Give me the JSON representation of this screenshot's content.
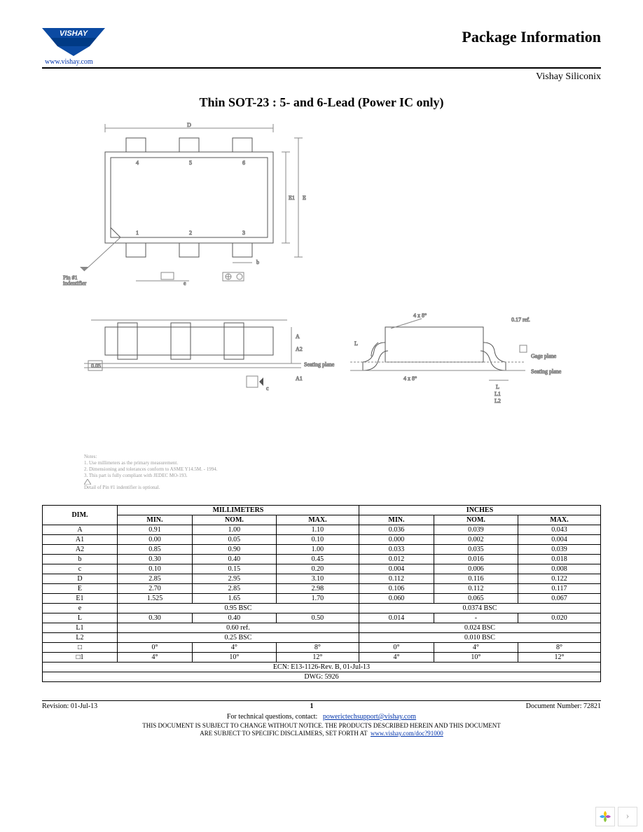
{
  "header": {
    "brand": "VISHAY",
    "url": "www.vishay.com",
    "title": "Package Information",
    "sub_brand": "Vishay Siliconix"
  },
  "doc_title": "Thin SOT-23 : 5- and 6-Lead (Power IC only)",
  "logo_colors": {
    "top": "#0b4aa2",
    "bottom": "#003a85"
  },
  "diagram": {
    "pin1_label": "Pin #1\nindentifier",
    "pins_top": [
      "4",
      "5",
      "6"
    ],
    "pins_bottom": [
      "1",
      "2",
      "3"
    ],
    "dims_top": {
      "D_label": "D",
      "E1_label": "E1",
      "E_label": "E",
      "b_label": "b"
    },
    "dims_mid": {
      "e_label": "e",
      "c_label": "c",
      "A_label": "A",
      "A2_label": "A2",
      "A1_label": "A1",
      "seating": "Seating plane",
      "scale": "0.05"
    },
    "dims_side": {
      "L_label": "L",
      "L1_label": "L1",
      "L2_label": "L2",
      "gage": "Gage plane",
      "seating": "Seating plane",
      "angles": "4 x 8°",
      "rad": "0.17 ref."
    }
  },
  "notes": {
    "heading": "Notes:",
    "n1": "1. Use millimeters as the primary measurement.",
    "n2": "2. Dimensioning and tolerances conform to ASME Y14.5M. - 1994.",
    "n3": "3. This part is fully compliant with JEDEC MO-193.",
    "n4": "Detail of Pin #1 indentifier is optional."
  },
  "table": {
    "group_headers": [
      "MILLIMETERS",
      "INCHES"
    ],
    "col_headers": [
      "DIM.",
      "MIN.",
      "NOM.",
      "MAX.",
      "MIN.",
      "NOM.",
      "MAX."
    ],
    "rows": [
      {
        "dim": "A",
        "mm": [
          "0.91",
          "1.00",
          "1.10"
        ],
        "in": [
          "0.036",
          "0.039",
          "0.043"
        ]
      },
      {
        "dim": "A1",
        "mm": [
          "0.00",
          "0.05",
          "0.10"
        ],
        "in": [
          "0.000",
          "0.002",
          "0.004"
        ]
      },
      {
        "dim": "A2",
        "mm": [
          "0.85",
          "0.90",
          "1.00"
        ],
        "in": [
          "0.033",
          "0.035",
          "0.039"
        ]
      },
      {
        "dim": "b",
        "mm": [
          "0.30",
          "0.40",
          "0.45"
        ],
        "in": [
          "0.012",
          "0.016",
          "0.018"
        ]
      },
      {
        "dim": "c",
        "mm": [
          "0.10",
          "0.15",
          "0.20"
        ],
        "in": [
          "0.004",
          "0.006",
          "0.008"
        ]
      },
      {
        "dim": "D",
        "mm": [
          "2.85",
          "2.95",
          "3.10"
        ],
        "in": [
          "0.112",
          "0.116",
          "0.122"
        ]
      },
      {
        "dim": "E",
        "mm": [
          "2.70",
          "2.85",
          "2.98"
        ],
        "in": [
          "0.106",
          "0.112",
          "0.117"
        ]
      },
      {
        "dim": "E1",
        "mm": [
          "1.525",
          "1.65",
          "1.70"
        ],
        "in": [
          "0.060",
          "0.065",
          "0.067"
        ]
      }
    ],
    "span_rows": [
      {
        "dim": "e",
        "mm": "0.95 BSC",
        "in": "0.0374 BSC"
      }
    ],
    "rows2": [
      {
        "dim": "L",
        "mm": [
          "0.30",
          "0.40",
          "0.50"
        ],
        "in": [
          "0.014",
          "-",
          "0.020"
        ]
      }
    ],
    "span_rows2": [
      {
        "dim": "L1",
        "mm": "0.60 ref.",
        "in": "0.024 BSC"
      },
      {
        "dim": "L2",
        "mm": "0.25 BSC",
        "in": "0.010 BSC"
      }
    ],
    "rows3": [
      {
        "dim": "□",
        "mm": [
          "0°",
          "4°",
          "8°"
        ],
        "in": [
          "0°",
          "4°",
          "8°"
        ]
      },
      {
        "dim": "□1",
        "mm": [
          "4°",
          "10°",
          "12°"
        ],
        "in": [
          "4°",
          "10°",
          "12°"
        ]
      }
    ],
    "ecn": "ECN: E13-1126-Rev. B, 01-Jul-13",
    "dwg": "DWG: 5926"
  },
  "footer": {
    "revision": "Revision: 01-Jul-13",
    "page": "1",
    "docnum": "Document Number: 72821",
    "tech_label": "For technical questions, contact:",
    "tech_email": "powerictechsupport@vishay.com",
    "disclaimer1": "THIS DOCUMENT IS SUBJECT TO CHANGE WITHOUT NOTICE. THE PRODUCTS DESCRIBED HEREIN AND THIS DOCUMENT",
    "disclaimer2": "ARE SUBJECT TO SPECIFIC DISCLAIMERS, SET FORTH AT",
    "disclaimer_link": "www.vishay.com/doc?91000"
  },
  "widget": {
    "chevron": "›"
  }
}
